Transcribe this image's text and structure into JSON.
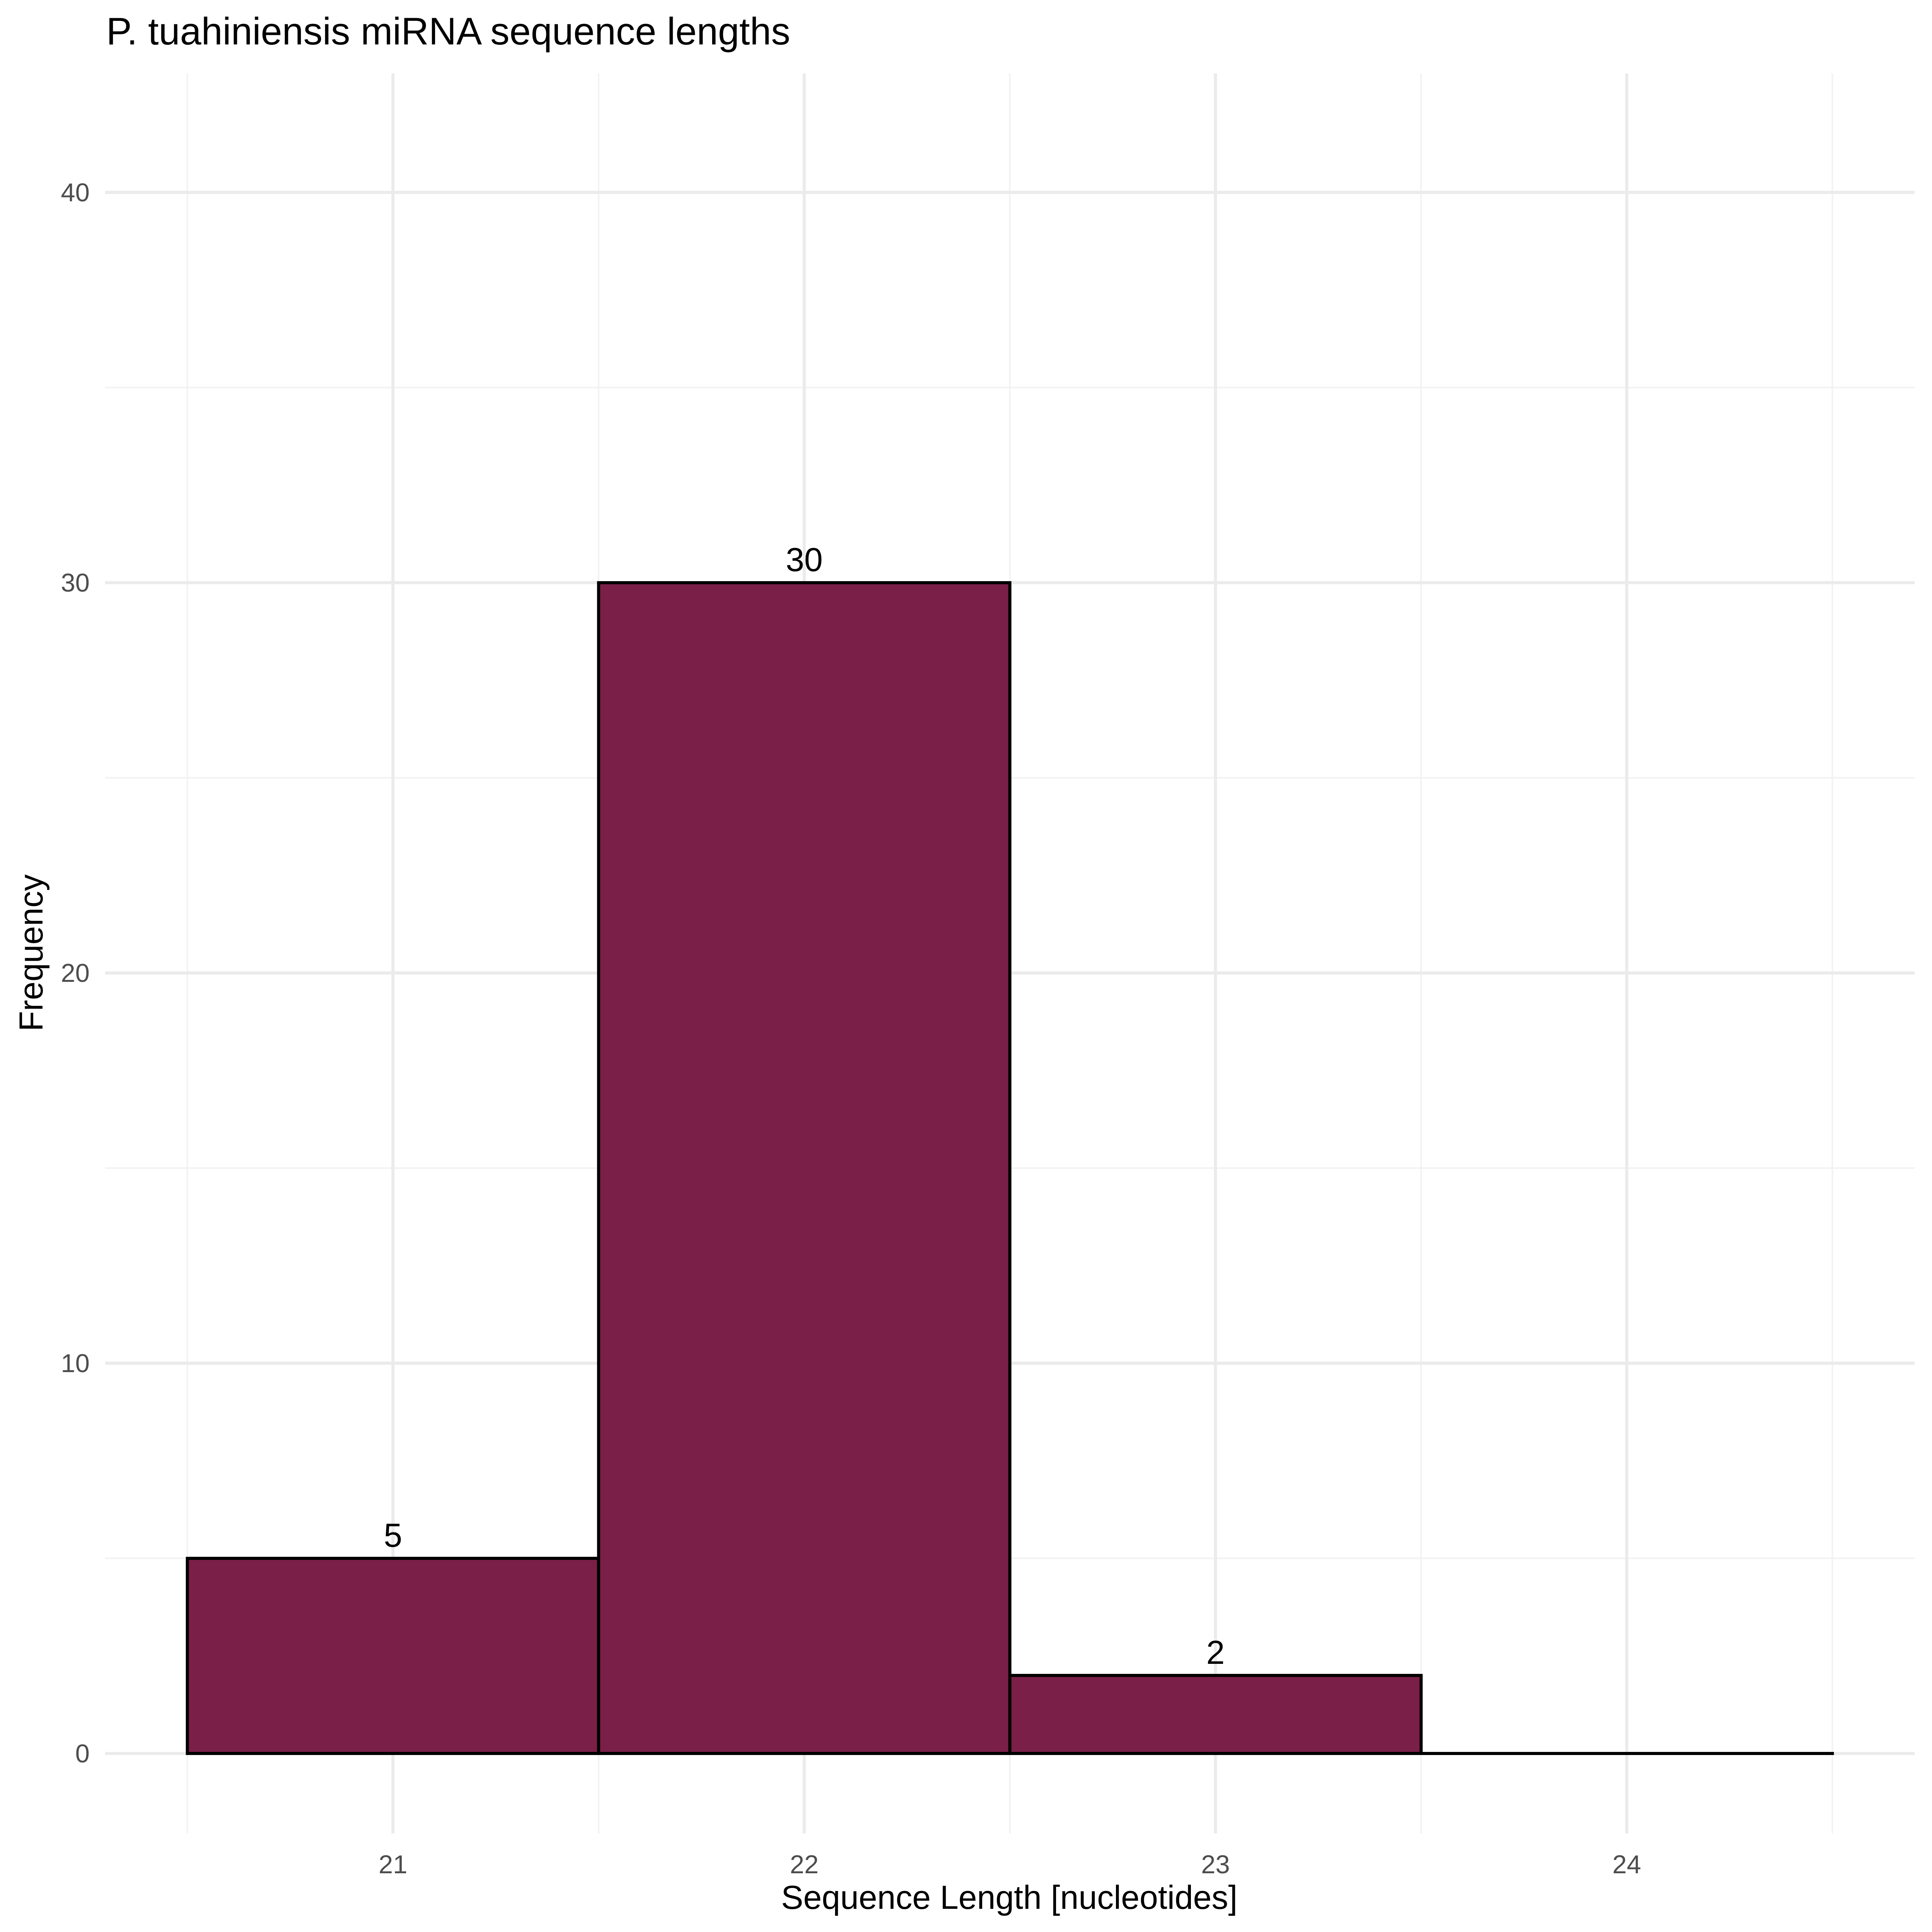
{
  "chart_data": {
    "type": "bar",
    "title": "P. tuahiniensis miRNA sequence lengths",
    "xlabel": "Sequence Length [nucleotides]",
    "ylabel": "Frequency",
    "categories": [
      "21",
      "22",
      "23",
      "24"
    ],
    "x": [
      21,
      22,
      23,
      24
    ],
    "values": [
      5,
      30,
      2,
      0
    ],
    "data_labels": [
      "5",
      "30",
      "2",
      ""
    ],
    "xlim": [
      20.3,
      24.7
    ],
    "ylim": [
      -2.05,
      43.05
    ],
    "x_ticks": [
      21,
      22,
      23,
      24
    ],
    "y_ticks": [
      0,
      10,
      20,
      30,
      40
    ],
    "y_tick_labels": [
      "0",
      "10",
      "20",
      "30",
      "40"
    ],
    "grid": true,
    "legend": "none",
    "colors": {
      "bar_fill": "#7a1f47",
      "bar_outline": "#000000"
    }
  }
}
